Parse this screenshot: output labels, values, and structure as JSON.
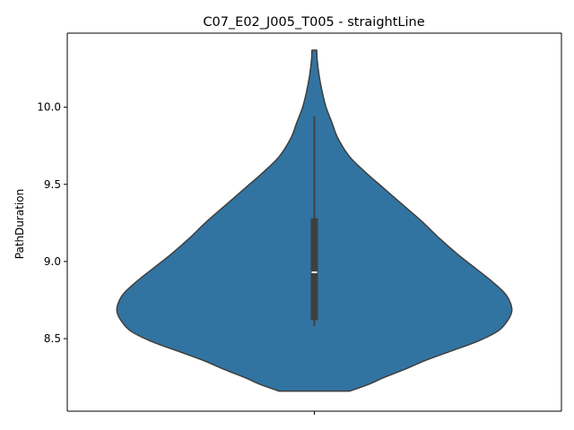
{
  "chart_data": {
    "type": "violin",
    "title": "C07_E02_J005_T005 - straightLine",
    "xlabel": "",
    "ylabel": "PathDuration",
    "ylim": [
      8.03,
      10.48
    ],
    "yticks": [
      8.5,
      9.0,
      9.5,
      10.0
    ],
    "ytick_labels": [
      "8.5",
      "9.0",
      "9.5",
      "10.0"
    ],
    "xtick_labels": [
      ""
    ],
    "grid": false,
    "colors": {
      "body": "#3274a1",
      "edge": "#3f3f3f",
      "box": "#3f3f3f",
      "median": "#ffffff"
    },
    "series": [
      {
        "min": 8.58,
        "q1": 8.62,
        "median": 8.93,
        "q3": 9.28,
        "max": 9.94,
        "kde_range": [
          8.16,
          10.37
        ],
        "density_profile": [
          [
            8.16,
            0.18
          ],
          [
            8.2,
            0.27
          ],
          [
            8.25,
            0.36
          ],
          [
            8.3,
            0.46
          ],
          [
            8.36,
            0.57
          ],
          [
            8.42,
            0.7
          ],
          [
            8.48,
            0.83
          ],
          [
            8.55,
            0.94
          ],
          [
            8.62,
            0.99
          ],
          [
            8.68,
            1.01
          ],
          [
            8.74,
            1.0
          ],
          [
            8.8,
            0.97
          ],
          [
            8.88,
            0.9
          ],
          [
            8.96,
            0.82
          ],
          [
            9.05,
            0.73
          ],
          [
            9.15,
            0.64
          ],
          [
            9.26,
            0.55
          ],
          [
            9.37,
            0.45
          ],
          [
            9.48,
            0.35
          ],
          [
            9.58,
            0.26
          ],
          [
            9.68,
            0.18
          ],
          [
            9.8,
            0.12
          ],
          [
            9.9,
            0.09
          ],
          [
            10.0,
            0.06
          ],
          [
            10.1,
            0.04
          ],
          [
            10.2,
            0.025
          ],
          [
            10.3,
            0.015
          ],
          [
            10.37,
            0.012
          ]
        ]
      }
    ]
  }
}
